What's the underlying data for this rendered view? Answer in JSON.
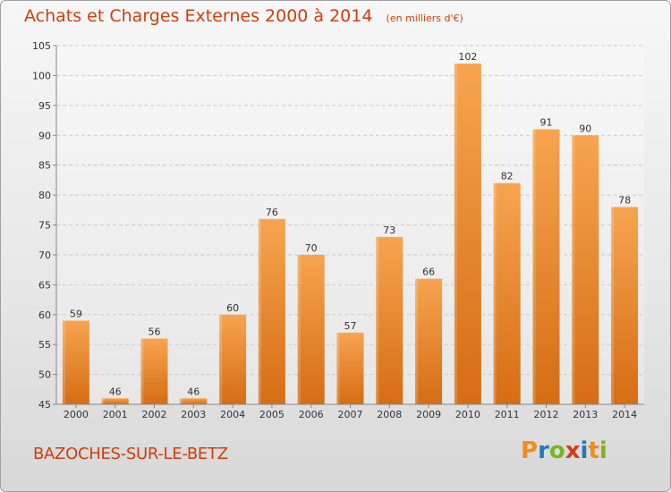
{
  "header": {
    "title": "Achats et Charges Externes 2000 à 2014",
    "subtitle": "(en milliers d'€)"
  },
  "footer": {
    "commune": "BAZOCHES-SUR-LE-BETZ",
    "brand": "Proxiti",
    "brand_colors": [
      "#f28c1c",
      "#1e7bc4",
      "#7ab51d",
      "#d43a22",
      "#1e7bc4",
      "#f28c1c",
      "#7ab51d"
    ]
  },
  "colors": {
    "bar_light": "#f7a450",
    "bar_dark": "#d56d14",
    "text_accent": "#cf3e0d",
    "grid": "#cccccc",
    "axis": "#888888"
  },
  "chart_data": {
    "type": "bar",
    "title": "Achats et Charges Externes 2000 à 2014",
    "subtitle": "(en milliers d'€)",
    "categories": [
      "2000",
      "2001",
      "2002",
      "2003",
      "2004",
      "2005",
      "2006",
      "2007",
      "2008",
      "2009",
      "2010",
      "2011",
      "2012",
      "2013",
      "2014"
    ],
    "values": [
      59,
      46,
      56,
      46,
      60,
      76,
      70,
      57,
      73,
      66,
      102,
      82,
      91,
      90,
      78
    ],
    "yticks": [
      45,
      50,
      55,
      60,
      65,
      70,
      75,
      80,
      85,
      90,
      95,
      100,
      105
    ],
    "ylim": [
      45,
      105
    ],
    "grid": true,
    "data_labels": true
  }
}
